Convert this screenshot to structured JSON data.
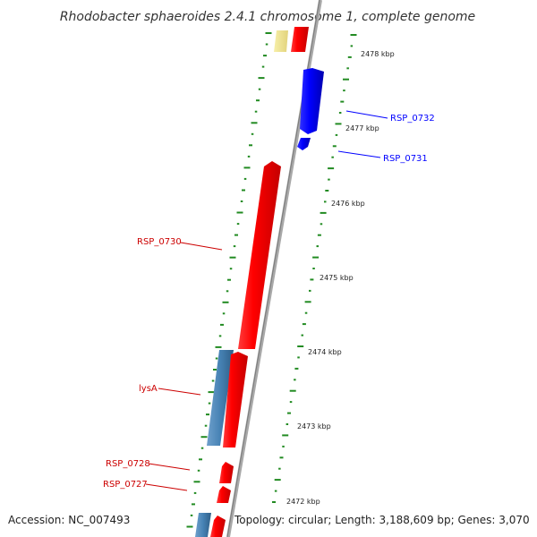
{
  "title": "Rhodobacter sphaeroides 2.4.1 chromosome 1, complete genome",
  "footer": {
    "accession": "Accession: NC_007493",
    "topology": "Topology: circular; Length: 3,188,609 bp; Genes: 3,070"
  },
  "colors": {
    "forward_cds": "#ff0000",
    "reverse_cds": "#0000ff",
    "rna_feature": "#4682b4",
    "other_feature": "#f0e68c",
    "backbone": "#999999",
    "gc_ticks": "#228b22"
  },
  "scale": {
    "unit": "kbp",
    "ticks": [
      "2478 kbp",
      "2477 kbp",
      "2476 kbp",
      "2475 kbp",
      "2474 kbp",
      "2473 kbp",
      "2472 kbp"
    ]
  },
  "genes": [
    {
      "name": "RSP_0732",
      "strand": "reverse",
      "color": "#0000ff"
    },
    {
      "name": "RSP_0731",
      "strand": "reverse",
      "color": "#0000ff"
    },
    {
      "name": "RSP_0730",
      "strand": "forward",
      "color": "#ff0000"
    },
    {
      "name": "lysA",
      "strand": "forward",
      "color": "#ff0000"
    },
    {
      "name": "RSP_0728",
      "strand": "forward",
      "color": "#ff0000"
    },
    {
      "name": "RSP_0727",
      "strand": "forward",
      "color": "#ff0000"
    }
  ]
}
